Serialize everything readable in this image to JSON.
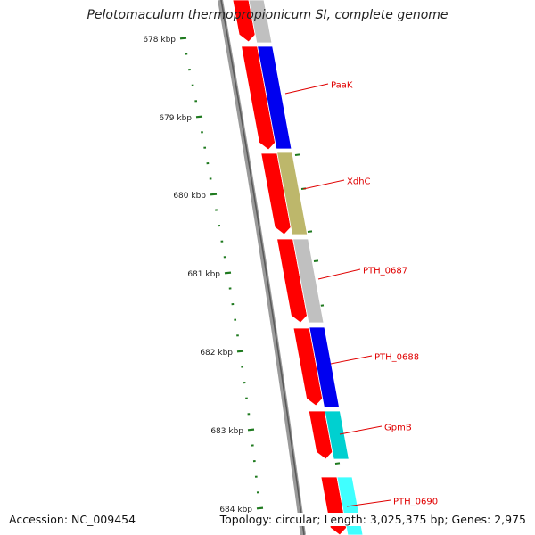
{
  "title": "Pelotomaculum thermopropionicum SI, complete genome",
  "footer": {
    "accession": "Accession: NC_009454",
    "summary": "Topology: circular; Length: 3,025,375 bp; Genes: 2,975"
  },
  "colors": {
    "backbone": "#7a7a7a",
    "strand_red": "#ff0000",
    "ruler": "#1f7a1f",
    "label": "#e00000",
    "blue": "#0000f0",
    "khaki": "#bdb76b",
    "gray": "#c0c0c0",
    "cyan": "#00d0d0",
    "light_cyan": "#40ffff"
  },
  "ruler_labels": [
    "678 kbp",
    "679 kbp",
    "680 kbp",
    "681 kbp",
    "682 kbp",
    "683 kbp",
    "684 kbp"
  ],
  "gene_labels": [
    "PaaK",
    "XdhC",
    "PTH_0687",
    "PTH_0688",
    "GpmB",
    "PTH_0690"
  ]
}
